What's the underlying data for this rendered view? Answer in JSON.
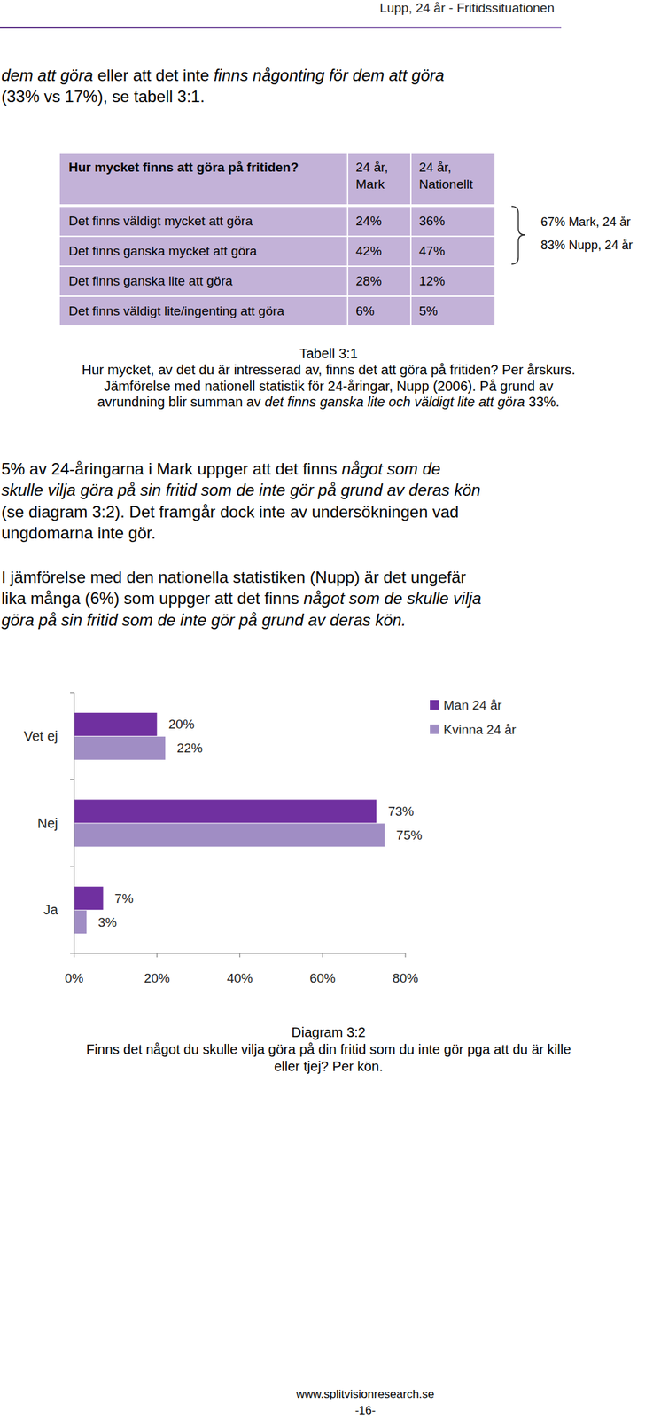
{
  "header": "Lupp, 24 år - Fritidssituationen",
  "intro": [
    [
      {
        "text": "dem att göra",
        "italic": true
      },
      {
        "text": " eller att det inte ",
        "italic": false
      },
      {
        "text": "finns någonting för dem att göra",
        "italic": true
      }
    ],
    [
      {
        "text": "(33% vs 17%), se tabell 3:1.",
        "italic": false
      }
    ]
  ],
  "table": {
    "header": [
      [
        "Hur mycket finns att göra på fritiden?"
      ],
      [
        "24 år,",
        "Mark"
      ],
      [
        "24 år,",
        "Nationellt"
      ]
    ],
    "rows": [
      [
        "Det finns väldigt mycket att göra",
        "24%",
        "36%"
      ],
      [
        "Det finns ganska mycket att göra",
        "42%",
        "47%"
      ],
      [
        "Det finns ganska lite att göra",
        "28%",
        "12%"
      ],
      [
        "Det finns väldigt lite/ingenting att göra",
        "6%",
        "5%"
      ]
    ],
    "annotation": [
      "67% Mark, 24 år",
      "83% Nupp, 24 år"
    ]
  },
  "table_caption": {
    "title": "Tabell 3:1",
    "lines": [
      [
        {
          "text": "Hur mycket, av det du är intresserad av, finns det att göra på fritiden? Per årskurs.",
          "italic": false
        }
      ],
      [
        {
          "text": "Jämförelse med nationell statistik för 24-åringar, Nupp (2006). På grund av",
          "italic": false
        }
      ],
      [
        {
          "text": "avrundning blir summan av ",
          "italic": false
        },
        {
          "text": "det finns ganska lite och väldigt lite att göra",
          "italic": true
        },
        {
          "text": " 33%.",
          "italic": false
        }
      ]
    ]
  },
  "paragraphs": [
    [
      [
        {
          "text": "5% av 24-åringarna i Mark uppger att det finns ",
          "italic": false
        },
        {
          "text": "något som de",
          "italic": true
        }
      ],
      [
        {
          "text": "skulle vilja göra på sin fritid som de inte gör på grund av deras kön",
          "italic": true
        }
      ],
      [
        {
          "text": "(se diagram 3:2). Det framgår dock inte av undersökningen vad",
          "italic": false
        }
      ],
      [
        {
          "text": "ungdomarna inte gör.",
          "italic": false
        }
      ]
    ],
    [
      [
        {
          "text": "I jämförelse med den nationella statistiken (Nupp) är det ungefär",
          "italic": false
        }
      ],
      [
        {
          "text": "lika många (6%) som uppger att det finns ",
          "italic": false
        },
        {
          "text": "något som de skulle vilja",
          "italic": true
        }
      ],
      [
        {
          "text": "göra på sin fritid som de inte gör på grund av deras kön.",
          "italic": true
        }
      ]
    ]
  ],
  "chart_data": {
    "type": "bar",
    "orientation": "horizontal",
    "categories": [
      "Vet ej",
      "Nej",
      "Ja"
    ],
    "series": [
      {
        "name": "Man 24 år",
        "color": "#7030a0",
        "values": [
          20,
          73,
          7
        ],
        "value_labels": [
          "20%",
          "73%",
          "7%"
        ]
      },
      {
        "name": "Kvinna 24 år",
        "color": "#a08dc4",
        "values": [
          22,
          75,
          3
        ],
        "value_labels": [
          "22%",
          "75%",
          "3%"
        ]
      }
    ],
    "xlim": [
      0,
      80
    ],
    "xticks": [
      {
        "value": 0,
        "label": "0%"
      },
      {
        "value": 20,
        "label": "20%"
      },
      {
        "value": 40,
        "label": "40%"
      },
      {
        "value": 60,
        "label": "60%"
      },
      {
        "value": 80,
        "label": "80%"
      }
    ],
    "data_labels": true,
    "legend": "top-right",
    "grid": false
  },
  "chart_caption": {
    "title": "Diagram 3:2",
    "lines": [
      [
        {
          "text": "Finns det något du skulle vilja göra på din fritid som du inte gör pga att du är kille",
          "italic": false
        }
      ],
      [
        {
          "text": "eller tjej? Per kön.",
          "italic": false
        }
      ]
    ]
  },
  "footer": {
    "url": "www.splitvisionresearch.se",
    "page": "-16-"
  }
}
